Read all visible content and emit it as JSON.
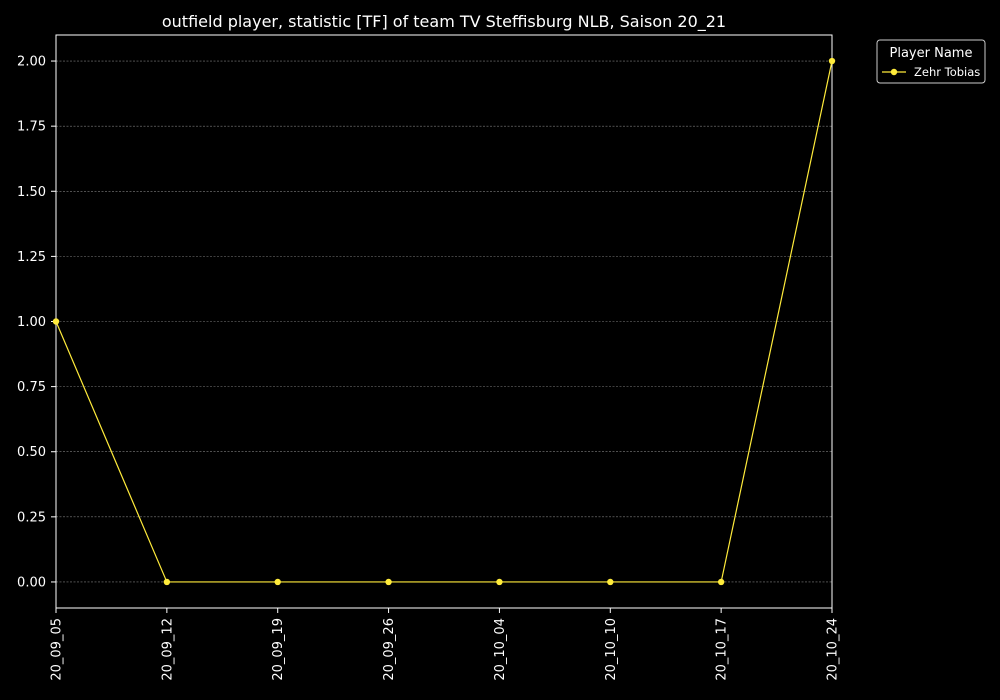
{
  "chart_data": {
    "type": "line",
    "title": "outfield player, statistic [TF] of team TV Steffisburg NLB, Saison 20_21",
    "xlabel": "",
    "ylabel": "",
    "categories": [
      "20_09_05",
      "20_09_12",
      "20_09_19",
      "20_09_26",
      "20_10_04",
      "20_10_10",
      "20_10_17",
      "20_10_24"
    ],
    "series": [
      {
        "name": "Zehr Tobias",
        "values": [
          1,
          0,
          0,
          0,
          0,
          0,
          0,
          2
        ],
        "color": "#ffeb3b"
      }
    ],
    "ylim": [
      -0.1,
      2.1
    ],
    "yticks": [
      "0.00",
      "0.25",
      "0.50",
      "0.75",
      "1.00",
      "1.25",
      "1.50",
      "1.75",
      "2.00"
    ],
    "grid": true,
    "legend": {
      "title": "Player Name",
      "position": "top-right, outside plot"
    },
    "colors": {
      "background": "#000000",
      "axes": "#ffffff",
      "grid": "#808080"
    }
  }
}
